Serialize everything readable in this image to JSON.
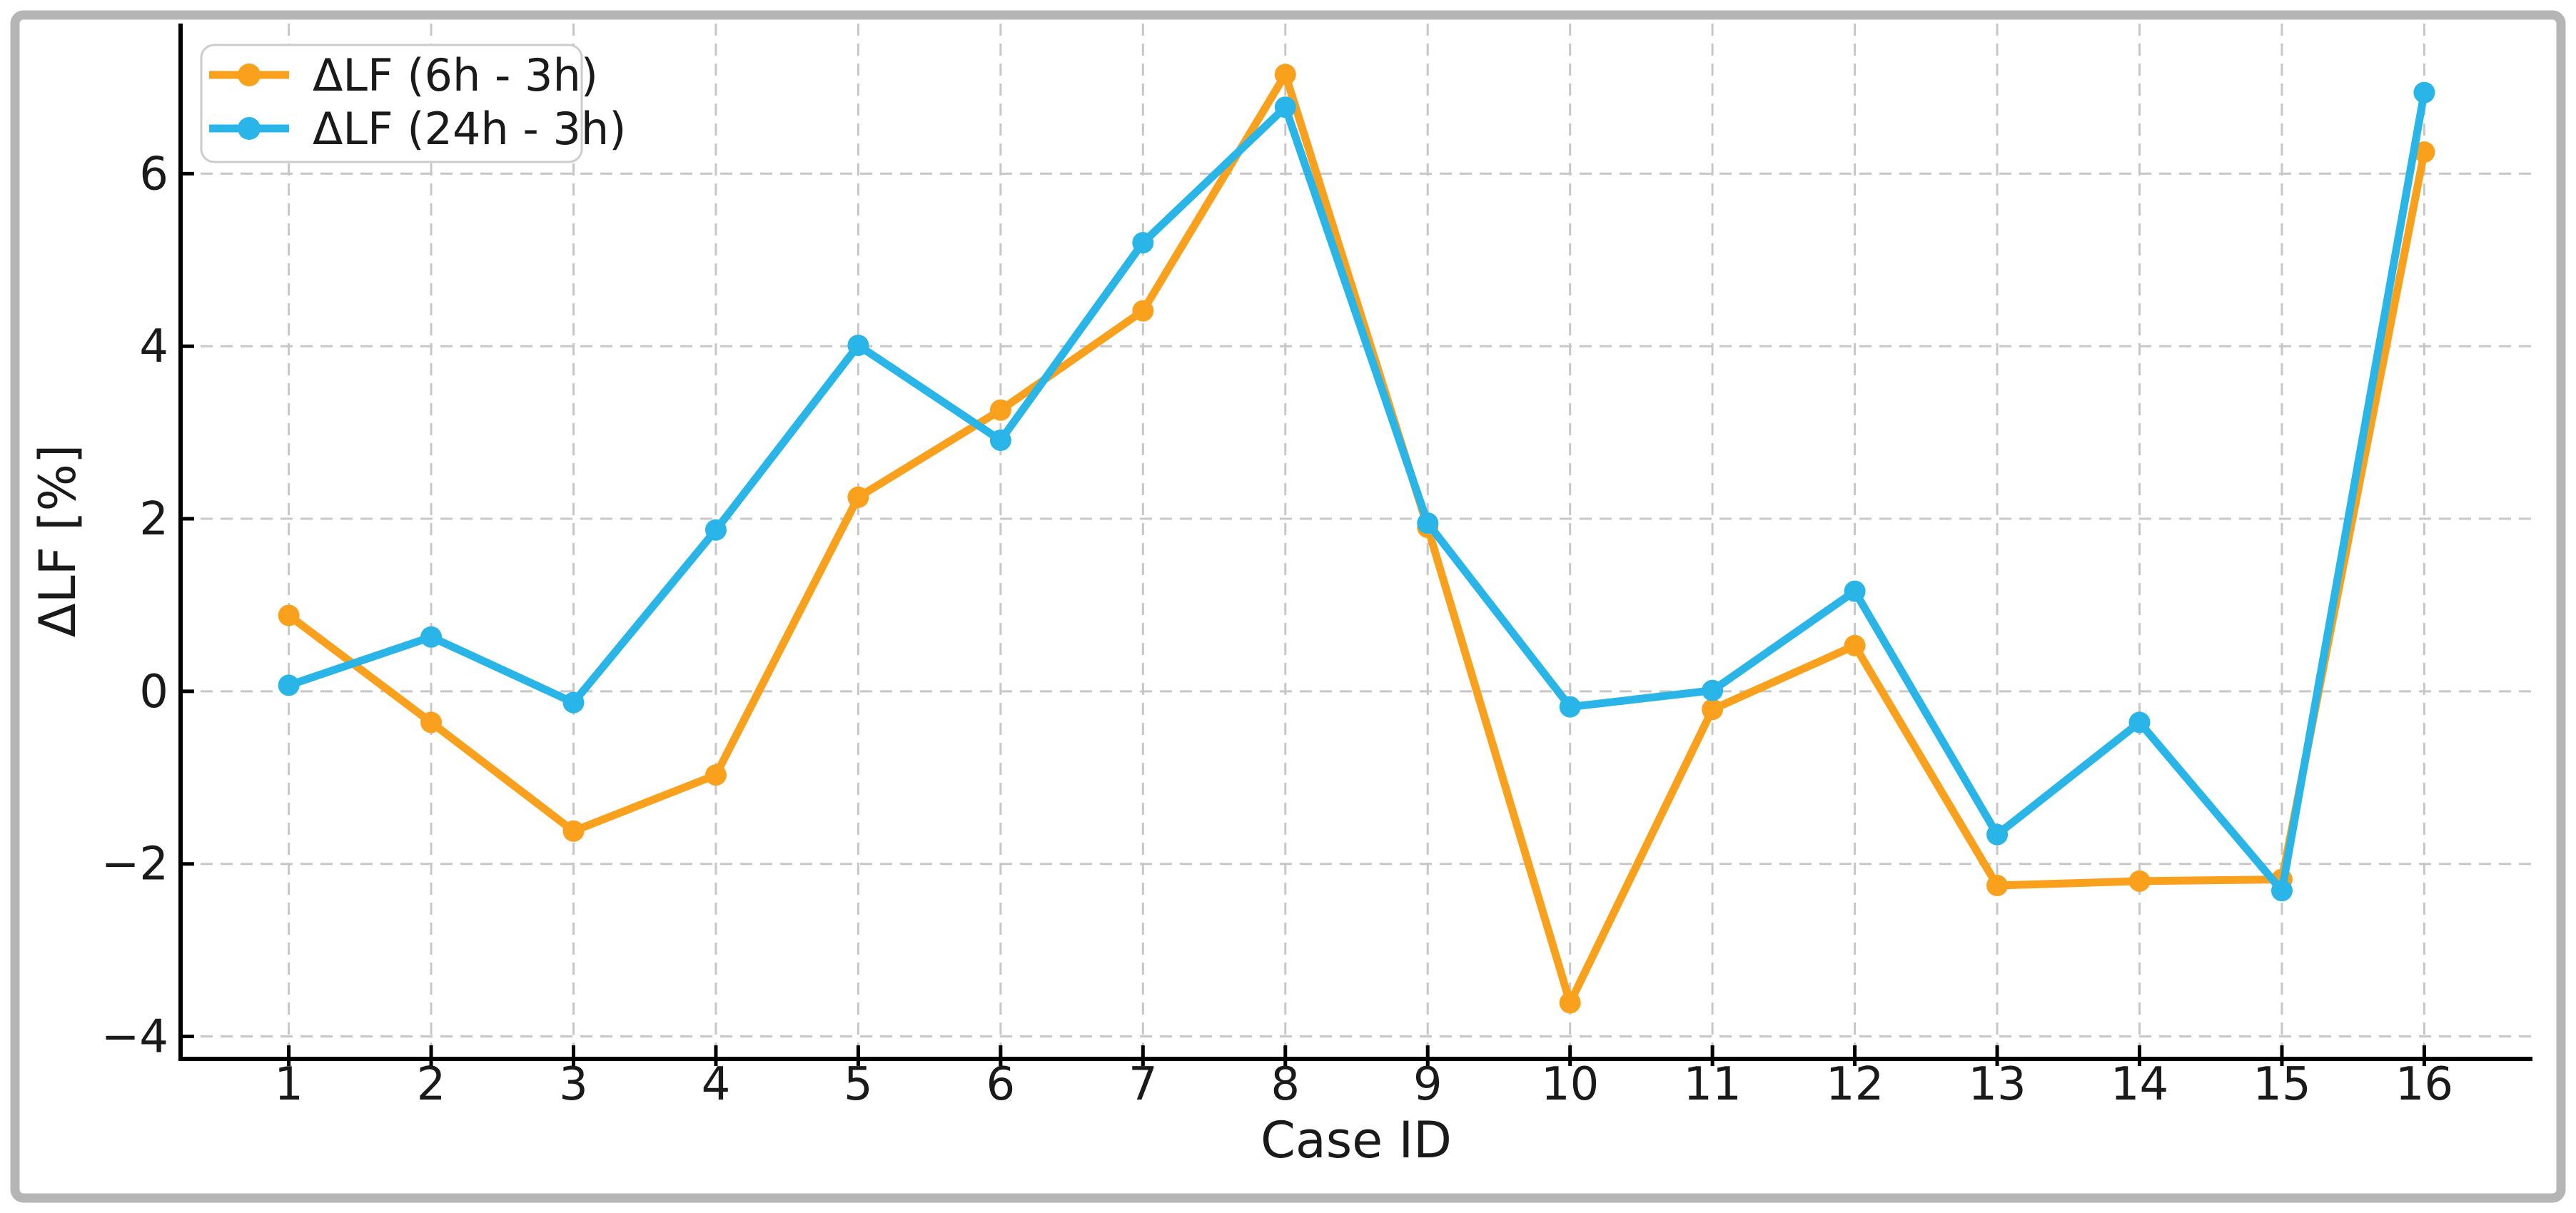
{
  "figure": {
    "background": "#ffffff",
    "border_color": "#b5b5b5",
    "text_color": "#1a1a1a",
    "grid_color": "#c7c7c7",
    "spine_color": "#000000",
    "legend_border_color": "#cccccc"
  },
  "chart_data": {
    "type": "line",
    "title": "",
    "xlabel": "Case ID",
    "ylabel": "ΔLF [%]",
    "categories": [
      1,
      2,
      3,
      4,
      5,
      6,
      7,
      8,
      9,
      10,
      11,
      12,
      13,
      14,
      15,
      16
    ],
    "series": [
      {
        "name": "ΔLF (6h - 3h)",
        "color": "#F9A01C",
        "values": [
          0.88,
          -0.36,
          -1.62,
          -0.97,
          2.25,
          3.26,
          4.41,
          7.15,
          1.9,
          -3.61,
          -0.21,
          0.53,
          -2.25,
          -2.2,
          -2.18,
          6.25
        ]
      },
      {
        "name": "ΔLF (24h - 3h)",
        "color": "#29B5E8",
        "values": [
          0.07,
          0.63,
          -0.13,
          1.87,
          4.01,
          2.91,
          5.2,
          6.77,
          1.95,
          -0.18,
          0.01,
          1.16,
          -1.66,
          -0.36,
          -2.31,
          6.94
        ]
      }
    ],
    "yticks": [
      6,
      4,
      2,
      0,
      -2,
      -4
    ],
    "xlim": [
      0.24,
      16.76
    ],
    "ylim": [
      -4.26,
      7.74
    ],
    "grid": true,
    "legend_position": "upper left"
  }
}
